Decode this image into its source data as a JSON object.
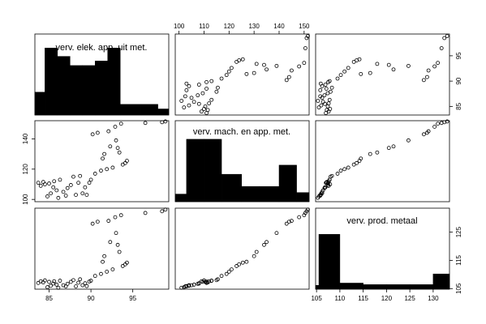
{
  "chart_data": {
    "type": "scatter",
    "subtype": "scatterplot-matrix",
    "diagonal": "histogram",
    "grid": false,
    "variables": [
      {
        "key": "elek",
        "name": "verv. elek. app. uit met.",
        "lim": [
          83.3,
          99.3
        ],
        "ticks": [
          85,
          90,
          95
        ],
        "tick_labels": [
          "85",
          "90",
          "95"
        ]
      },
      {
        "key": "mach",
        "name": "verv. mach. en app. met.",
        "lim": [
          98.5,
          152
        ],
        "ticks": [
          100,
          110,
          120,
          130,
          140,
          150
        ],
        "tick_labels": [
          "100",
          "110",
          "120",
          "130",
          "140",
          "150"
        ],
        "left_ticks": [
          100,
          120,
          140
        ],
        "left_tick_labels": [
          "100",
          "120",
          "140"
        ]
      },
      {
        "key": "prod",
        "name": "verv. prod. metaal",
        "lim": [
          104.8,
          133.5
        ],
        "ticks": [
          105,
          110,
          115,
          120,
          125,
          130
        ],
        "tick_labels": [
          "105",
          "110",
          "115",
          "120",
          "125",
          "130"
        ],
        "right_ticks": [
          105,
          115,
          125
        ],
        "right_tick_labels": [
          "105",
          "115",
          "125"
        ]
      }
    ],
    "histograms": [
      {
        "variable": "elek",
        "bins": [
          [
            83.3,
            84.5
          ],
          [
            84.5,
            86
          ],
          [
            86,
            87.5
          ],
          [
            87.5,
            89
          ],
          [
            89,
            90.5
          ],
          [
            90.5,
            92
          ],
          [
            92,
            93.5
          ],
          [
            93.5,
            96
          ],
          [
            96,
            98
          ],
          [
            98,
            99.3
          ]
        ],
        "rel_heights": [
          0.3,
          0.88,
          0.77,
          0.65,
          0.65,
          0.71,
          0.88,
          0.14,
          0.14,
          0.08
        ]
      },
      {
        "variable": "mach",
        "bins": [
          [
            98.5,
            103
          ],
          [
            103,
            110
          ],
          [
            110,
            117
          ],
          [
            117,
            125
          ],
          [
            125,
            132
          ],
          [
            132,
            140
          ],
          [
            140,
            147
          ],
          [
            147,
            152
          ]
        ],
        "rel_heights": [
          0.1,
          0.82,
          0.82,
          0.36,
          0.2,
          0.2,
          0.48,
          0.12
        ]
      },
      {
        "variable": "prod",
        "bins": [
          [
            104.8,
            105.5
          ],
          [
            105.5,
            110
          ],
          [
            110,
            115
          ],
          [
            115,
            120
          ],
          [
            120,
            125
          ],
          [
            125,
            130
          ],
          [
            130,
            133.5
          ]
        ],
        "rel_heights": [
          0.05,
          0.72,
          0.08,
          0.06,
          0.06,
          0.06,
          0.2
        ]
      }
    ],
    "points": [
      {
        "elek": 83.7,
        "mach": 111.0,
        "prod": 107.0
      },
      {
        "elek": 84.0,
        "mach": 109.0,
        "prod": 107.6
      },
      {
        "elek": 84.3,
        "mach": 111.5,
        "prod": 107.2
      },
      {
        "elek": 84.5,
        "mach": 110.0,
        "prod": 107.9
      },
      {
        "elek": 84.8,
        "mach": 102.0,
        "prod": 105.5
      },
      {
        "elek": 85.0,
        "mach": 110.5,
        "prod": 107.4
      },
      {
        "elek": 85.2,
        "mach": 104.0,
        "prod": 106.0
      },
      {
        "elek": 85.5,
        "mach": 108.0,
        "prod": 106.8
      },
      {
        "elek": 85.6,
        "mach": 112.0,
        "prod": 107.6
      },
      {
        "elek": 85.9,
        "mach": 106.0,
        "prod": 106.4
      },
      {
        "elek": 86.1,
        "mach": 101.0,
        "prod": 105.3
      },
      {
        "elek": 86.3,
        "mach": 113.0,
        "prod": 107.8
      },
      {
        "elek": 86.7,
        "mach": 105.0,
        "prod": 106.2
      },
      {
        "elek": 87.0,
        "mach": 102.5,
        "prod": 105.8
      },
      {
        "elek": 87.2,
        "mach": 107.5,
        "prod": 106.7
      },
      {
        "elek": 87.6,
        "mach": 109.5,
        "prod": 107.4
      },
      {
        "elek": 87.9,
        "mach": 115.0,
        "prod": 108.0
      },
      {
        "elek": 88.2,
        "mach": 103.0,
        "prod": 105.8
      },
      {
        "elek": 88.5,
        "mach": 111.0,
        "prod": 107.1
      },
      {
        "elek": 88.7,
        "mach": 115.5,
        "prod": 108.3
      },
      {
        "elek": 89.0,
        "mach": 104.0,
        "prod": 106.2
      },
      {
        "elek": 89.3,
        "mach": 108.0,
        "prod": 106.9
      },
      {
        "elek": 89.5,
        "mach": 103.0,
        "prod": 105.9
      },
      {
        "elek": 89.8,
        "mach": 111.0,
        "prod": 107.5
      },
      {
        "elek": 90.0,
        "mach": 113.0,
        "prod": 107.8
      },
      {
        "elek": 90.2,
        "mach": 143.0,
        "prod": 128.0
      },
      {
        "elek": 90.5,
        "mach": 117.0,
        "prod": 109.5
      },
      {
        "elek": 90.8,
        "mach": 144.0,
        "prod": 128.7
      },
      {
        "elek": 91.2,
        "mach": 119.0,
        "prod": 110.2
      },
      {
        "elek": 91.4,
        "mach": 127.0,
        "prod": 114.5
      },
      {
        "elek": 91.6,
        "mach": 130.0,
        "prod": 116.5
      },
      {
        "elek": 91.9,
        "mach": 120.0,
        "prod": 111.0
      },
      {
        "elek": 92.1,
        "mach": 145.0,
        "prod": 129.0
      },
      {
        "elek": 92.3,
        "mach": 135.0,
        "prod": 121.5
      },
      {
        "elek": 92.6,
        "mach": 121.0,
        "prod": 111.8
      },
      {
        "elek": 92.9,
        "mach": 148.0,
        "prod": 130.3
      },
      {
        "elek": 93.0,
        "mach": 139.0,
        "prod": 124.7
      },
      {
        "elek": 93.2,
        "mach": 134.0,
        "prod": 120.5
      },
      {
        "elek": 93.4,
        "mach": 131.0,
        "prod": 118.0
      },
      {
        "elek": 93.6,
        "mach": 150.0,
        "prod": 131.0
      },
      {
        "elek": 93.8,
        "mach": 123.0,
        "prod": 113.0
      },
      {
        "elek": 94.1,
        "mach": 124.0,
        "prod": 113.6
      },
      {
        "elek": 94.3,
        "mach": 125.5,
        "prod": 114.2
      },
      {
        "elek": 96.5,
        "mach": 150.5,
        "prod": 131.8
      },
      {
        "elek": 98.5,
        "mach": 151.0,
        "prod": 132.4
      },
      {
        "elek": 98.9,
        "mach": 151.5,
        "prod": 133.0
      }
    ]
  }
}
